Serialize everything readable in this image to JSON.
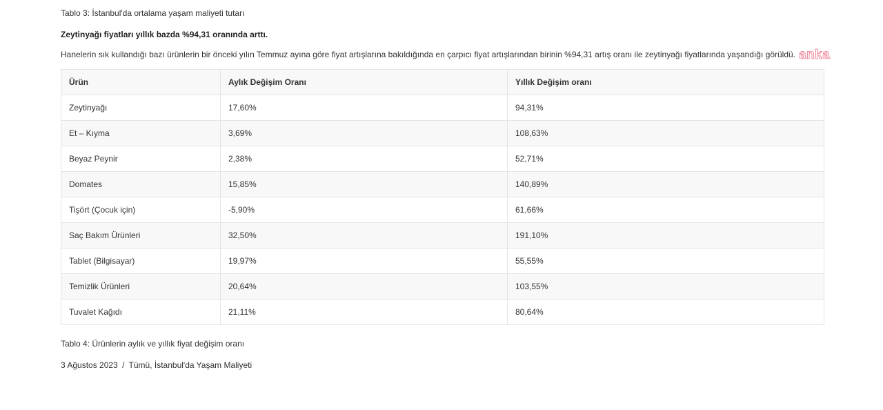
{
  "caption_top": "Tablo 3: İstanbul'da ortalama yaşam maliyeti tutarı",
  "headline": "Zeytinyağı fiyatları yıllık bazda %94,31 oranında arttı.",
  "paragraph": "Hanelerin sık kullandığı bazı ürünlerin bir önceki yılın Temmuz ayına göre fiyat artışlarına bakıldığında en çarpıcı fiyat artışlarından birinin %94,31 artış oranı ile zeytinyağı fiyatlarında yaşandığı görüldü.",
  "watermark": "anka",
  "table": {
    "headers": [
      "Ürün",
      "Aylık Değişim Oranı",
      "Yıllık Değişim oranı"
    ],
    "rows": [
      [
        "Zeytinyağı",
        "17,60%",
        "94,31%"
      ],
      [
        "Et – Kıyma",
        "3,69%",
        "108,63%"
      ],
      [
        "Beyaz Peynir",
        "2,38%",
        "52,71%"
      ],
      [
        "Domates",
        "15,85%",
        "140,89%"
      ],
      [
        "Tişört (Çocuk için)",
        "-5,90%",
        "61,66%"
      ],
      [
        "Saç Bakım Ürünleri",
        "32,50%",
        "191,10%"
      ],
      [
        "Tablet (Bilgisayar)",
        "19,97%",
        "55,55%"
      ],
      [
        "Temizlik Ürünleri",
        "20,64%",
        "103,55%"
      ],
      [
        "Tuvalet Kağıdı",
        "21,11%",
        "80,64%"
      ]
    ]
  },
  "caption_bottom": "Tablo 4: Ürünlerin aylık ve yıllık fiyat değişim oranı",
  "meta": {
    "date": "3 Ağustos 2023",
    "separator": "/",
    "category": "Tümü, İstanbul'da Yaşam Maliyeti"
  }
}
